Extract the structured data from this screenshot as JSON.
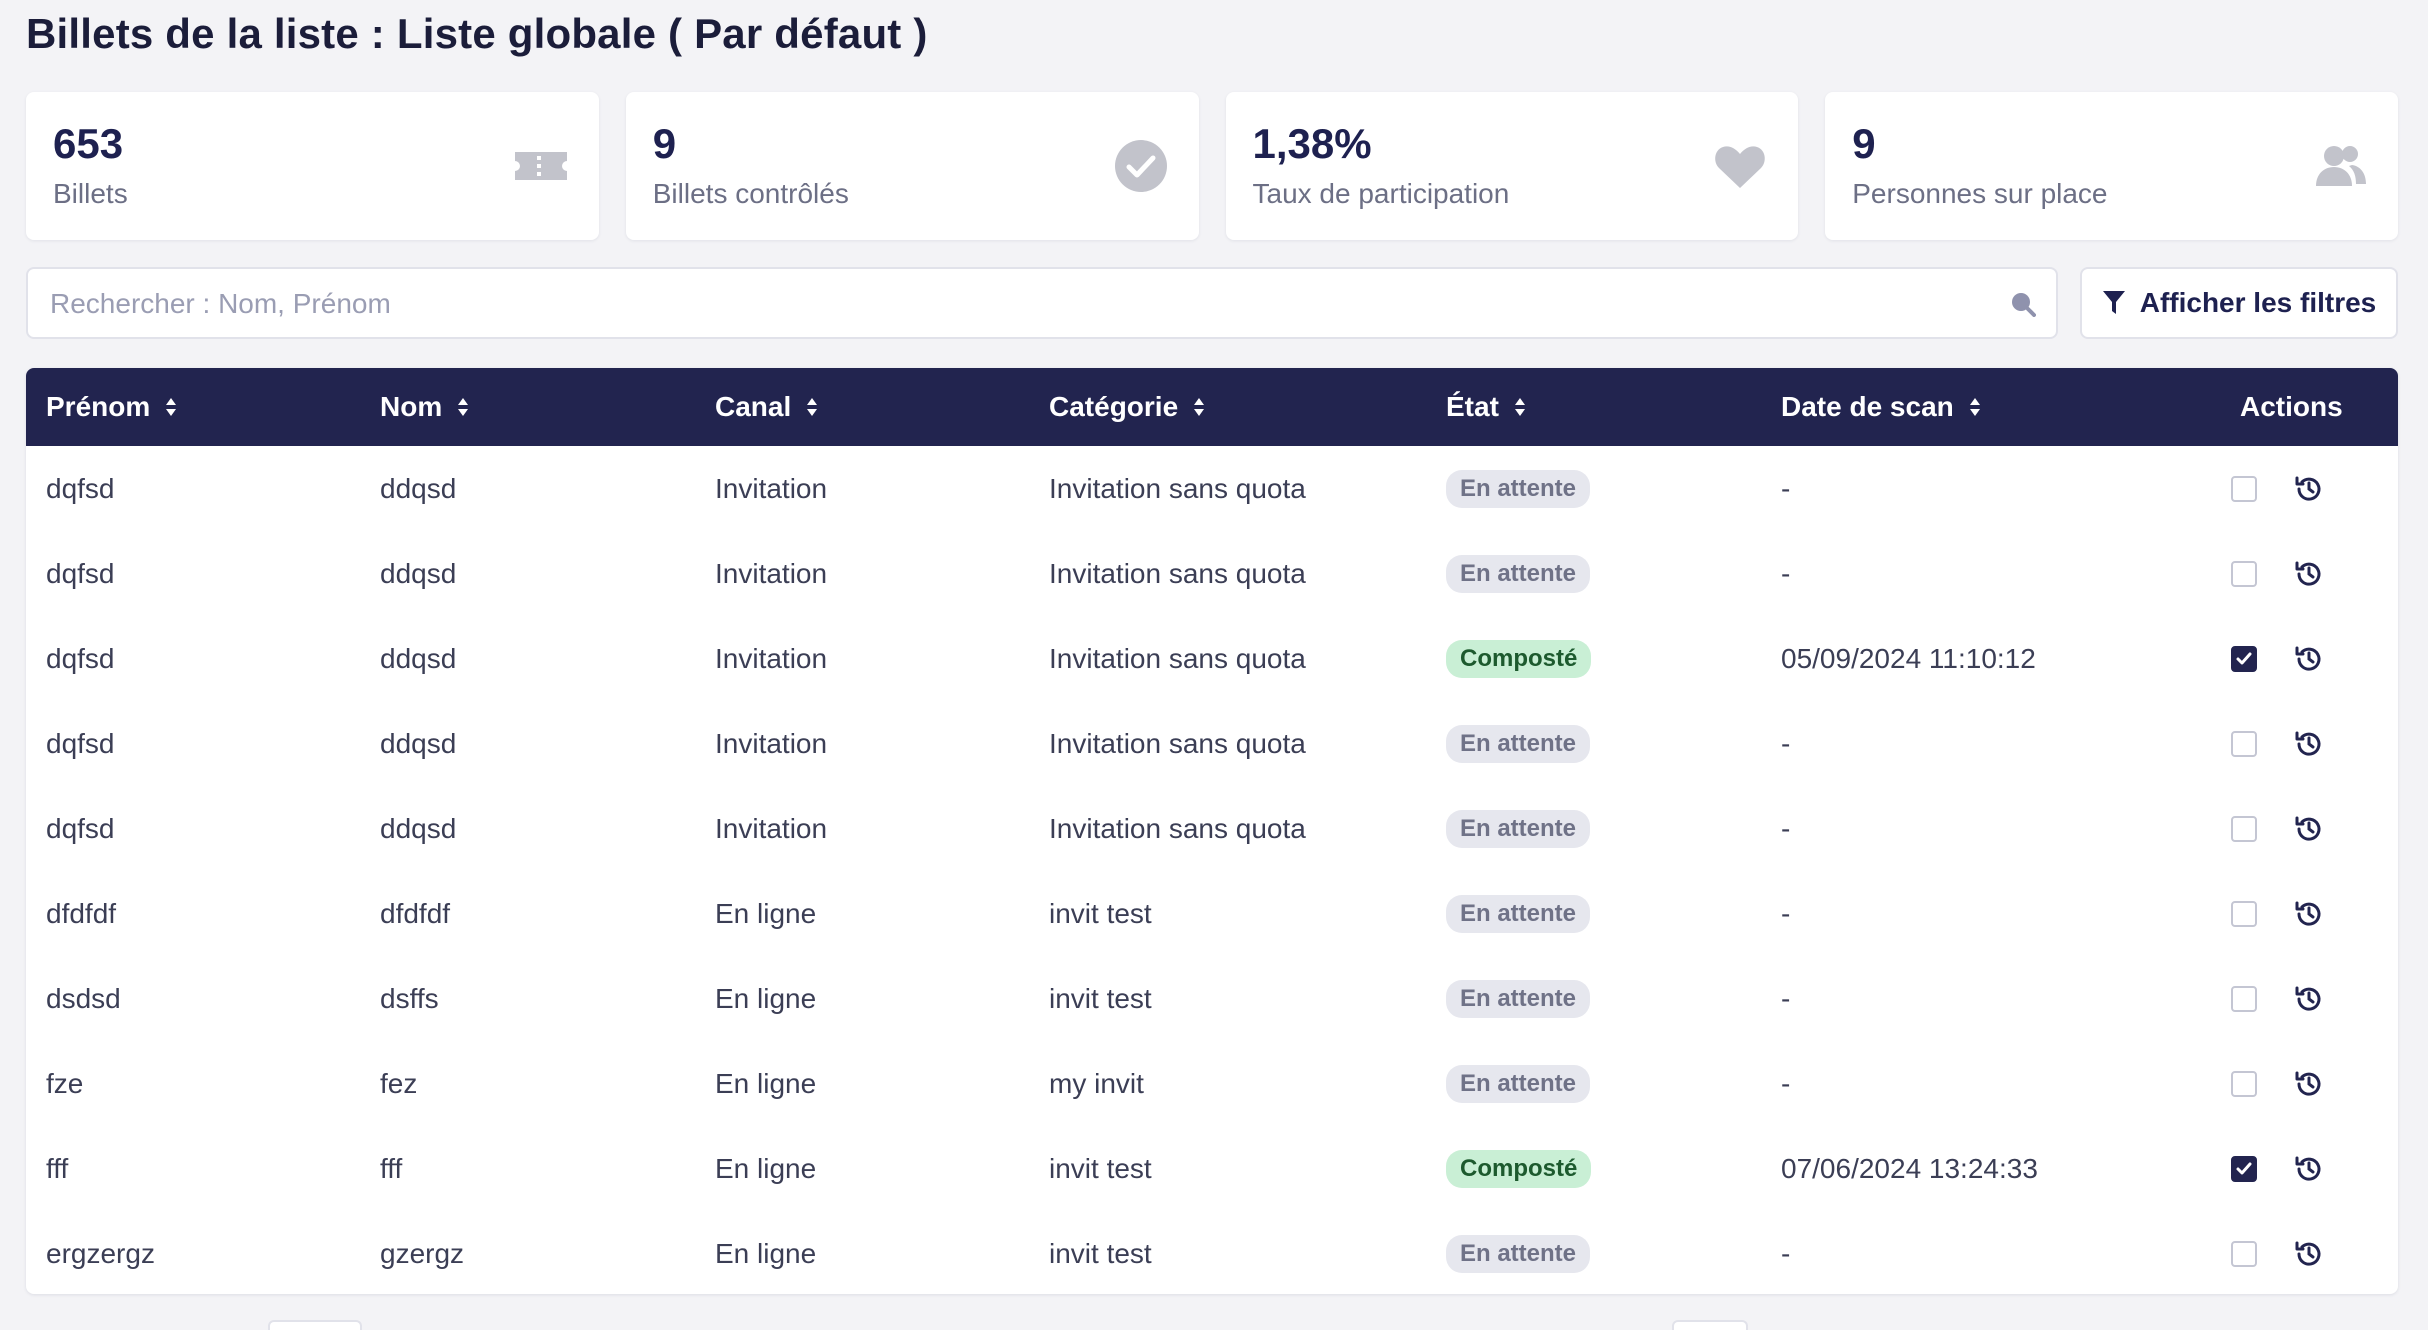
{
  "page": {
    "title": "Billets de la liste : Liste globale ( Par défaut )"
  },
  "stats": [
    {
      "value": "653",
      "label": "Billets",
      "icon": "ticket-icon"
    },
    {
      "value": "9",
      "label": "Billets contrôlés",
      "icon": "check-circle-icon"
    },
    {
      "value": "1,38%",
      "label": "Taux de participation",
      "icon": "heart-icon"
    },
    {
      "value": "9",
      "label": "Personnes sur place",
      "icon": "users-icon"
    }
  ],
  "search": {
    "placeholder": "Rechercher : Nom, Prénom",
    "value": ""
  },
  "filters": {
    "label": "Afficher les filtres"
  },
  "table": {
    "columns": [
      "Prénom",
      "Nom",
      "Canal",
      "Catégorie",
      "État",
      "Date de scan",
      "Actions"
    ],
    "rows": [
      {
        "prenom": "dqfsd",
        "nom": "ddqsd",
        "canal": "Invitation",
        "categorie": "Invitation sans quota",
        "etat": "En attente",
        "date": "-",
        "checked": false
      },
      {
        "prenom": "dqfsd",
        "nom": "ddqsd",
        "canal": "Invitation",
        "categorie": "Invitation sans quota",
        "etat": "En attente",
        "date": "-",
        "checked": false
      },
      {
        "prenom": "dqfsd",
        "nom": "ddqsd",
        "canal": "Invitation",
        "categorie": "Invitation sans quota",
        "etat": "Composté",
        "date": "05/09/2024 11:10:12",
        "checked": true
      },
      {
        "prenom": "dqfsd",
        "nom": "ddqsd",
        "canal": "Invitation",
        "categorie": "Invitation sans quota",
        "etat": "En attente",
        "date": "-",
        "checked": false
      },
      {
        "prenom": "dqfsd",
        "nom": "ddqsd",
        "canal": "Invitation",
        "categorie": "Invitation sans quota",
        "etat": "En attente",
        "date": "-",
        "checked": false
      },
      {
        "prenom": "dfdfdf",
        "nom": "dfdfdf",
        "canal": "En ligne",
        "categorie": "invit test",
        "etat": "En attente",
        "date": "-",
        "checked": false
      },
      {
        "prenom": "dsdsd",
        "nom": "dsffs",
        "canal": "En ligne",
        "categorie": "invit test",
        "etat": "En attente",
        "date": "-",
        "checked": false
      },
      {
        "prenom": "fze",
        "nom": "fez",
        "canal": "En ligne",
        "categorie": "my invit",
        "etat": "En attente",
        "date": "-",
        "checked": false
      },
      {
        "prenom": "fff",
        "nom": "fff",
        "canal": "En ligne",
        "categorie": "invit test",
        "etat": "Composté",
        "date": "07/06/2024 13:24:33",
        "checked": true
      },
      {
        "prenom": "ergzergz",
        "nom": "gzergz",
        "canal": "En ligne",
        "categorie": "invit test",
        "etat": "En attente",
        "date": "-",
        "checked": false
      }
    ]
  },
  "colors": {
    "header_bg": "#22244f",
    "badge_waiting": "#e6e7ee",
    "badge_done": "#c9efd5",
    "icon_gray": "#c2c3cb"
  }
}
